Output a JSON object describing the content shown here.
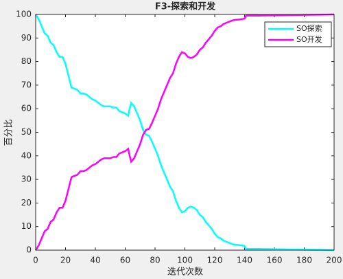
{
  "chart_data": {
    "type": "line",
    "title": "F3-探索和开发",
    "x_label": "迭代次数",
    "y_label": "百分比",
    "x": [
      0,
      2,
      4,
      6,
      8,
      10,
      12,
      14,
      16,
      18,
      20,
      22,
      24,
      26,
      28,
      30,
      32,
      34,
      36,
      38,
      40,
      42,
      44,
      46,
      48,
      50,
      52,
      54,
      56,
      58,
      60,
      62,
      63,
      64,
      66,
      68,
      70,
      72,
      74,
      76,
      78,
      80,
      82,
      84,
      86,
      88,
      90,
      92,
      94,
      96,
      98,
      100,
      102,
      104,
      106,
      108,
      110,
      112,
      114,
      116,
      118,
      120,
      122,
      124,
      126,
      128,
      130,
      132,
      134,
      136,
      138,
      140,
      141,
      150,
      160,
      170,
      180,
      190,
      200
    ],
    "series": [
      {
        "name": "SO探索",
        "color": "#00ffff",
        "values": [
          100,
          98,
          95,
          92,
          91,
          88,
          87,
          84,
          82,
          82,
          79,
          74,
          69,
          68.5,
          68,
          66.5,
          66.5,
          66,
          65,
          64,
          63.5,
          62.5,
          61.5,
          61,
          61,
          61,
          60.5,
          60.5,
          59,
          58.5,
          58,
          57,
          60,
          62.5,
          61,
          58,
          55,
          51,
          49,
          48.5,
          46,
          43,
          40,
          36,
          33,
          30,
          27,
          25,
          21,
          18,
          16,
          16.5,
          18,
          18.5,
          18,
          17,
          15,
          14,
          12,
          10.5,
          9,
          7,
          5.5,
          5,
          4,
          3.5,
          3,
          2.5,
          2.3,
          2.2,
          2,
          1.8,
          0.5,
          0.5,
          0.4,
          0.3,
          0.2,
          0.1,
          0
        ]
      },
      {
        "name": "SO开发",
        "color": "#ff00ff",
        "values": [
          0,
          2,
          5,
          8,
          9,
          12,
          13,
          16,
          18,
          18,
          21,
          26,
          31,
          31.5,
          32,
          33.5,
          33.5,
          34,
          35,
          36,
          36.5,
          37.5,
          38.5,
          39,
          39,
          39,
          39.5,
          39.5,
          41,
          41.5,
          42,
          43,
          40,
          37.5,
          39,
          42,
          45,
          49,
          51,
          51.5,
          54,
          57,
          60,
          64,
          67,
          70,
          73,
          75,
          79,
          82,
          84,
          83.5,
          82,
          81.5,
          82,
          83,
          85,
          86,
          88,
          89.5,
          91,
          93,
          94.5,
          95,
          96,
          96.5,
          97,
          97.5,
          97.7,
          97.8,
          98,
          98.2,
          99.5,
          99.5,
          99.6,
          99.7,
          99.8,
          99.9,
          100
        ]
      }
    ],
    "xlim": [
      0,
      200
    ],
    "xticks": [
      0,
      20,
      40,
      60,
      80,
      100,
      120,
      140,
      160,
      180,
      200
    ],
    "ylim": [
      0,
      100
    ],
    "yticks": [
      0,
      10,
      20,
      30,
      40,
      50,
      60,
      70,
      80,
      90,
      100
    ],
    "legend": "upper right"
  }
}
